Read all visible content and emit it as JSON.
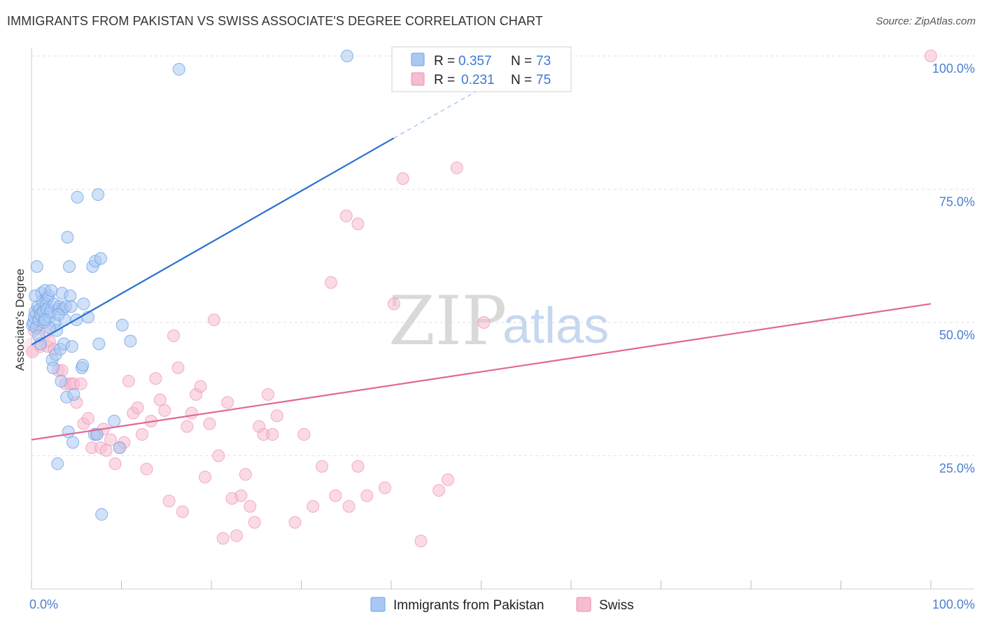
{
  "title": "IMMIGRANTS FROM PAKISTAN VS SWISS ASSOCIATE'S DEGREE CORRELATION CHART",
  "source": "Source: ZipAtlas.com",
  "watermark": {
    "zip": "ZIP",
    "atlas": "atlas"
  },
  "colors": {
    "blue": "#6fa2e6",
    "blue_fill": "#a9c8f2",
    "blue_line": "#2a72d0",
    "pink": "#ee8fb0",
    "pink_fill": "#f6bcd0",
    "pink_line": "#e06994",
    "tick": "#4a7fd0"
  },
  "legend": {
    "r_label": "R =",
    "n_label": "N =",
    "rows": [
      {
        "series": "blue",
        "r": "0.357",
        "n": "73"
      },
      {
        "series": "pink",
        "r": "0.231",
        "n": "75"
      }
    ]
  },
  "chart_data": {
    "type": "scatter",
    "title": "IMMIGRANTS FROM PAKISTAN VS SWISS ASSOCIATE'S DEGREE CORRELATION CHART",
    "xlabel": "",
    "ylabel": "Associate's Degree",
    "xlim": [
      0,
      100
    ],
    "ylim": [
      0,
      100
    ],
    "x_tick_labels": [
      "0.0%",
      "100.0%"
    ],
    "y_ticks": [
      25,
      50,
      75,
      100
    ],
    "y_tick_labels": [
      "25.0%",
      "50.0%",
      "75.0%",
      "100.0%"
    ],
    "series": [
      {
        "name": "Immigrants from Pakistan",
        "color": "blue",
        "trend": {
          "x0": 0,
          "y0": 45.8,
          "x1": 40.3,
          "y1": 84.6,
          "dash_to_x": 49.6,
          "dash_to_y": 93.5
        },
        "points": [
          [
            0.1,
            49.5
          ],
          [
            0.2,
            50.0
          ],
          [
            0.3,
            51.0
          ],
          [
            0.4,
            52.0
          ],
          [
            0.5,
            49.0
          ],
          [
            0.6,
            60.5
          ],
          [
            0.7,
            53.0
          ],
          [
            0.8,
            50.5
          ],
          [
            0.9,
            52.5
          ],
          [
            1.0,
            51.5
          ],
          [
            1.1,
            55.5
          ],
          [
            1.2,
            54.0
          ],
          [
            1.3,
            52.0
          ],
          [
            1.4,
            50.0
          ],
          [
            1.5,
            56.0
          ],
          [
            1.6,
            53.5
          ],
          [
            1.7,
            52.5
          ],
          [
            1.8,
            54.5
          ],
          [
            1.9,
            55.0
          ],
          [
            2.0,
            51.0
          ],
          [
            2.1,
            52.0
          ],
          [
            2.2,
            56.0
          ],
          [
            2.3,
            43.0
          ],
          [
            2.4,
            41.5
          ],
          [
            2.5,
            53.5
          ],
          [
            2.6,
            50.0
          ],
          [
            2.7,
            44.0
          ],
          [
            2.8,
            48.5
          ],
          [
            2.9,
            23.5
          ],
          [
            3.0,
            52.5
          ],
          [
            3.1,
            53.0
          ],
          [
            3.2,
            45.0
          ],
          [
            3.3,
            39.0
          ],
          [
            3.4,
            55.5
          ],
          [
            3.5,
            52.5
          ],
          [
            3.6,
            46.0
          ],
          [
            3.7,
            50.5
          ],
          [
            3.8,
            53.0
          ],
          [
            3.9,
            36.0
          ],
          [
            4.0,
            66.0
          ],
          [
            4.1,
            29.5
          ],
          [
            4.2,
            60.5
          ],
          [
            4.3,
            55.0
          ],
          [
            4.4,
            53.0
          ],
          [
            4.5,
            45.5
          ],
          [
            4.6,
            27.5
          ],
          [
            4.7,
            36.5
          ],
          [
            5.0,
            50.5
          ],
          [
            5.1,
            73.5
          ],
          [
            5.6,
            41.5
          ],
          [
            5.7,
            42.0
          ],
          [
            5.8,
            53.5
          ],
          [
            6.3,
            51.0
          ],
          [
            6.8,
            60.5
          ],
          [
            7.0,
            29.0
          ],
          [
            7.1,
            61.5
          ],
          [
            7.3,
            29.0
          ],
          [
            7.4,
            74.0
          ],
          [
            7.5,
            46.0
          ],
          [
            7.7,
            62.0
          ],
          [
            7.8,
            14.0
          ],
          [
            9.2,
            31.5
          ],
          [
            9.8,
            26.5
          ],
          [
            10.1,
            49.5
          ],
          [
            11.0,
            46.5
          ],
          [
            16.4,
            97.5
          ],
          [
            35.1,
            100.0
          ],
          [
            1.0,
            46.0
          ],
          [
            0.8,
            47.5
          ],
          [
            2.0,
            49.0
          ],
          [
            0.4,
            55.0
          ],
          [
            1.5,
            50.5
          ],
          [
            3.0,
            51.5
          ]
        ]
      },
      {
        "name": "Swiss",
        "color": "pink",
        "trend": {
          "x0": 0,
          "y0": 28.0,
          "x1": 100,
          "y1": 53.5
        },
        "points": [
          [
            0.1,
            44.5
          ],
          [
            0.3,
            48.5
          ],
          [
            0.5,
            51.5
          ],
          [
            0.7,
            49.5
          ],
          [
            1.0,
            45.5
          ],
          [
            1.6,
            48.0
          ],
          [
            1.8,
            45.5
          ],
          [
            2.0,
            46.5
          ],
          [
            2.5,
            45.0
          ],
          [
            3.0,
            41.0
          ],
          [
            3.4,
            41.0
          ],
          [
            3.8,
            38.5
          ],
          [
            4.3,
            38.5
          ],
          [
            4.7,
            38.5
          ],
          [
            5.0,
            35.0
          ],
          [
            5.5,
            38.5
          ],
          [
            5.8,
            31.0
          ],
          [
            6.3,
            32.0
          ],
          [
            6.7,
            26.5
          ],
          [
            7.2,
            29.0
          ],
          [
            7.7,
            26.5
          ],
          [
            8.0,
            30.0
          ],
          [
            8.3,
            26.0
          ],
          [
            8.8,
            28.0
          ],
          [
            9.3,
            23.5
          ],
          [
            9.8,
            26.5
          ],
          [
            10.3,
            27.5
          ],
          [
            10.8,
            39.0
          ],
          [
            11.3,
            33.0
          ],
          [
            11.8,
            34.0
          ],
          [
            12.3,
            29.0
          ],
          [
            12.8,
            22.5
          ],
          [
            13.3,
            31.5
          ],
          [
            13.8,
            39.5
          ],
          [
            14.3,
            35.5
          ],
          [
            14.8,
            33.5
          ],
          [
            15.3,
            16.5
          ],
          [
            15.8,
            47.5
          ],
          [
            16.3,
            41.5
          ],
          [
            16.8,
            14.5
          ],
          [
            17.3,
            30.5
          ],
          [
            17.8,
            33.0
          ],
          [
            18.3,
            36.5
          ],
          [
            18.8,
            38.0
          ],
          [
            19.3,
            21.0
          ],
          [
            19.8,
            31.0
          ],
          [
            20.3,
            50.5
          ],
          [
            20.8,
            25.0
          ],
          [
            21.3,
            9.5
          ],
          [
            21.8,
            35.0
          ],
          [
            22.3,
            17.0
          ],
          [
            22.8,
            10.0
          ],
          [
            23.3,
            17.5
          ],
          [
            23.8,
            21.5
          ],
          [
            24.3,
            15.5
          ],
          [
            24.8,
            12.5
          ],
          [
            25.3,
            30.5
          ],
          [
            25.8,
            29.0
          ],
          [
            26.3,
            36.5
          ],
          [
            26.8,
            29.0
          ],
          [
            27.3,
            32.5
          ],
          [
            29.3,
            12.5
          ],
          [
            30.3,
            29.0
          ],
          [
            31.3,
            15.5
          ],
          [
            32.3,
            23.0
          ],
          [
            33.3,
            57.5
          ],
          [
            33.8,
            17.5
          ],
          [
            35.0,
            70.0
          ],
          [
            35.3,
            15.5
          ],
          [
            36.3,
            23.0
          ],
          [
            37.3,
            17.5
          ],
          [
            39.3,
            19.0
          ],
          [
            40.3,
            53.5
          ],
          [
            41.3,
            77.0
          ],
          [
            43.3,
            9.0
          ]
        ]
      }
    ],
    "extra_points_pink": [
      [
        45.3,
        18.5
      ],
      [
        46.3,
        20.5
      ],
      [
        47.3,
        79.0
      ],
      [
        50.3,
        50.0
      ],
      [
        36.3,
        68.5
      ],
      [
        100,
        100.0
      ]
    ]
  },
  "bottom_legend": [
    {
      "series": "blue",
      "label": "Immigrants from Pakistan"
    },
    {
      "series": "pink",
      "label": "Swiss"
    }
  ]
}
